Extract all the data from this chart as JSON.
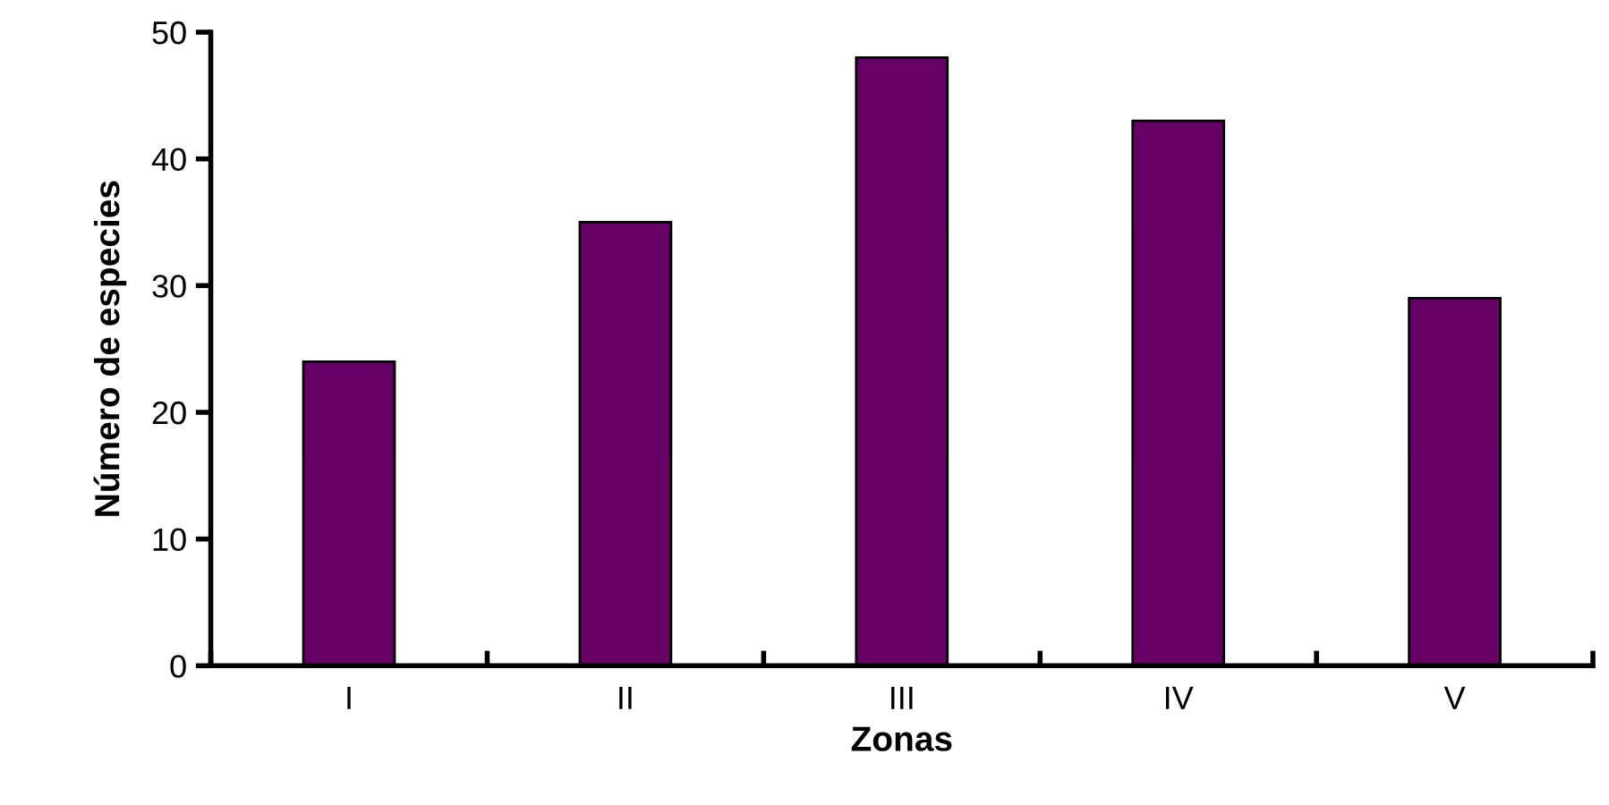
{
  "chart_data": {
    "type": "bar",
    "xlabel": "Zonas",
    "ylabel": "Número de especies",
    "categories": [
      "I",
      "II",
      "III",
      "IV",
      "V"
    ],
    "values": [
      24,
      35,
      48,
      43,
      29
    ],
    "color": "#660066",
    "ylim": [
      0,
      50
    ],
    "yticks": [
      0,
      10,
      20,
      30,
      40,
      50
    ],
    "grid": false,
    "legend": false
  }
}
